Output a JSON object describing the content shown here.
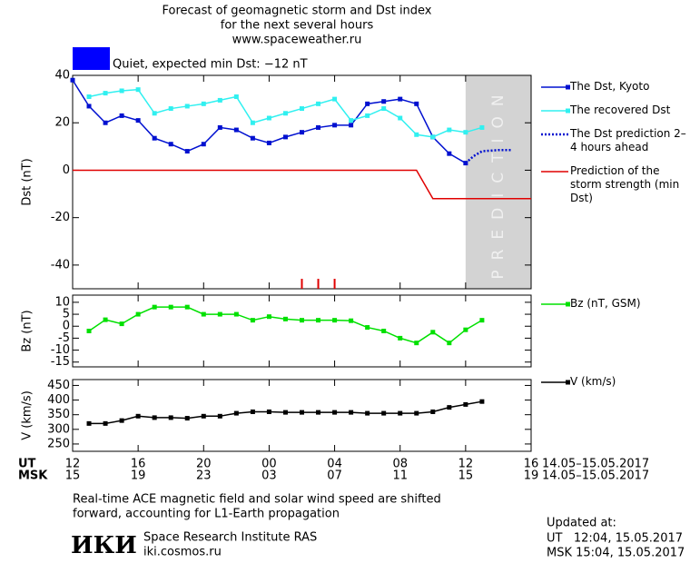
{
  "header": {
    "title_lines": [
      "Forecast of geomagnetic storm and Dst index",
      "for the next several hours",
      "www.spaceweather.ru"
    ],
    "status": "Quiet, expected min Dst: −12 nT",
    "status_color": "#0000ff"
  },
  "chart_data": [
    {
      "type": "line",
      "ylabel": "Dst (nT)",
      "xlim": [
        0,
        28
      ],
      "ylim": [
        -50,
        40
      ],
      "yticks": [
        40,
        20,
        0,
        -20,
        -40
      ],
      "prediction_region": [
        24,
        28
      ],
      "prediction_label": "PREDICTION",
      "prediction_color": "#d3d3d3",
      "event_markers": {
        "x": [
          14,
          15,
          16
        ],
        "color": "#e00000"
      },
      "series": [
        {
          "name": "The Dst, Kyoto",
          "color": "#0010d0",
          "marker": "square",
          "x": [
            0,
            1,
            2,
            3,
            4,
            5,
            6,
            7,
            8,
            9,
            10,
            11,
            12,
            13,
            14,
            15,
            16,
            17,
            18,
            19,
            20,
            21,
            22,
            23,
            24
          ],
          "values": [
            38,
            27,
            20,
            23,
            21,
            13.5,
            11,
            8,
            11,
            18,
            17,
            13.5,
            11.5,
            14,
            16,
            18,
            19,
            19,
            28,
            29,
            30,
            28,
            14,
            7,
            3
          ]
        },
        {
          "name": "The recovered Dst",
          "color": "#30f0f0",
          "marker": "square",
          "x": [
            1,
            2,
            3,
            4,
            5,
            6,
            7,
            8,
            9,
            10,
            11,
            12,
            13,
            14,
            15,
            16,
            17,
            18,
            19,
            20,
            21,
            22,
            23,
            24,
            25
          ],
          "values": [
            31,
            32.5,
            33.5,
            34,
            24,
            26,
            27,
            28,
            29.5,
            31,
            20,
            22,
            24,
            26,
            28,
            30,
            21,
            23,
            26,
            22,
            15,
            14,
            17,
            16,
            18
          ]
        },
        {
          "name": "The Dst prediction 2–4 hours ahead",
          "color": "#0010d0",
          "line_style": "dotted",
          "x": [
            24,
            24.5,
            25,
            26,
            26.8
          ],
          "values": [
            3,
            6,
            8,
            8.5,
            8.5
          ]
        },
        {
          "name": "Prediction of the storm strength (min Dst)",
          "color": "#e00000",
          "x": [
            0,
            21,
            22,
            28
          ],
          "values": [
            0,
            0,
            -12,
            -12
          ]
        }
      ]
    },
    {
      "type": "line",
      "ylabel": "Bz (nT)",
      "xlim": [
        0,
        28
      ],
      "ylim": [
        -17,
        13
      ],
      "yticks": [
        10,
        5,
        0,
        -5,
        -10,
        -15
      ],
      "series": [
        {
          "name": "Bz (nT, GSM)",
          "color": "#00e000",
          "marker": "square",
          "x": [
            1,
            2,
            3,
            4,
            5,
            6,
            7,
            8,
            9,
            10,
            11,
            12,
            13,
            14,
            15,
            16,
            17,
            18,
            19,
            20,
            21,
            22,
            23,
            24,
            25
          ],
          "values": [
            -2,
            2.7,
            1,
            5,
            8,
            8,
            8,
            5,
            5,
            5,
            2.5,
            4,
            3,
            2.5,
            2.5,
            2.5,
            2.3,
            -0.5,
            -2,
            -5,
            -7,
            -2.5,
            -7,
            -1.5,
            2.5
          ]
        }
      ]
    },
    {
      "type": "line",
      "ylabel": "V (km/s)",
      "xlim": [
        0,
        28
      ],
      "ylim": [
        225,
        470
      ],
      "yticks": [
        450,
        400,
        350,
        300,
        250
      ],
      "xticks": [
        {
          "value": 0,
          "label": "12"
        },
        {
          "value": 4,
          "label": "16"
        },
        {
          "value": 8,
          "label": "20"
        },
        {
          "value": 12,
          "label": "00"
        },
        {
          "value": 16,
          "label": "04"
        },
        {
          "value": 20,
          "label": "08"
        },
        {
          "value": 24,
          "label": "12"
        },
        {
          "value": 28,
          "label": "16"
        }
      ],
      "xticks_msk": [
        {
          "value": 0,
          "label": "15"
        },
        {
          "value": 4,
          "label": "19"
        },
        {
          "value": 8,
          "label": "23"
        },
        {
          "value": 12,
          "label": "03"
        },
        {
          "value": 16,
          "label": "07"
        },
        {
          "value": 20,
          "label": "11"
        },
        {
          "value": 24,
          "label": "15"
        },
        {
          "value": 28,
          "label": "19"
        }
      ],
      "series": [
        {
          "name": "V (km/s)",
          "color": "#000000",
          "marker": "square",
          "x": [
            1,
            2,
            3,
            4,
            5,
            6,
            7,
            8,
            9,
            10,
            11,
            12,
            13,
            14,
            15,
            16,
            17,
            18,
            19,
            20,
            21,
            22,
            23,
            24,
            25
          ],
          "values": [
            320,
            320,
            330,
            345,
            340,
            340,
            338,
            345,
            345,
            355,
            360,
            360,
            358,
            358,
            358,
            358,
            358,
            355,
            355,
            355,
            355,
            360,
            375,
            385,
            395
          ]
        }
      ]
    }
  ],
  "footer": {
    "x_row_labels": [
      "UT",
      "MSK"
    ],
    "date_range": [
      "14.05–15.05.2017",
      "14.05–15.05.2017"
    ],
    "note_lines": [
      "Real-time ACE magnetic field and solar wind speed are shifted",
      "forward, accounting for L1-Earth propagation"
    ],
    "logo": "ИКИ",
    "institute": "Space Research Institute RAS",
    "website": "iki.cosmos.ru",
    "updated": [
      "Updated at:",
      "UT   12:04, 15.05.2017",
      "MSK 15:04, 15.05.2017"
    ]
  }
}
